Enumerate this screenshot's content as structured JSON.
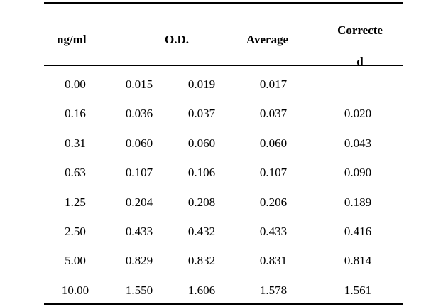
{
  "table": {
    "headers": {
      "concentration": "ng/ml",
      "od": "O.D.",
      "average": "Average",
      "corrected_line1": "Correcte",
      "corrected_line2": "d"
    },
    "rows": [
      {
        "conc": "0.00",
        "od1": "0.015",
        "od2": "0.019",
        "avg": "0.017",
        "corr": ""
      },
      {
        "conc": "0.16",
        "od1": "0.036",
        "od2": "0.037",
        "avg": "0.037",
        "corr": "0.020"
      },
      {
        "conc": "0.31",
        "od1": "0.060",
        "od2": "0.060",
        "avg": "0.060",
        "corr": "0.043"
      },
      {
        "conc": "0.63",
        "od1": "0.107",
        "od2": "0.106",
        "avg": "0.107",
        "corr": "0.090"
      },
      {
        "conc": "1.25",
        "od1": "0.204",
        "od2": "0.208",
        "avg": "0.206",
        "corr": "0.189"
      },
      {
        "conc": "2.50",
        "od1": "0.433",
        "od2": "0.432",
        "avg": "0.433",
        "corr": "0.416"
      },
      {
        "conc": "5.00",
        "od1": "0.829",
        "od2": "0.832",
        "avg": "0.831",
        "corr": "0.814"
      },
      {
        "conc": "10.00",
        "od1": "1.550",
        "od2": "1.606",
        "avg": "1.578",
        "corr": "1.561"
      }
    ]
  }
}
